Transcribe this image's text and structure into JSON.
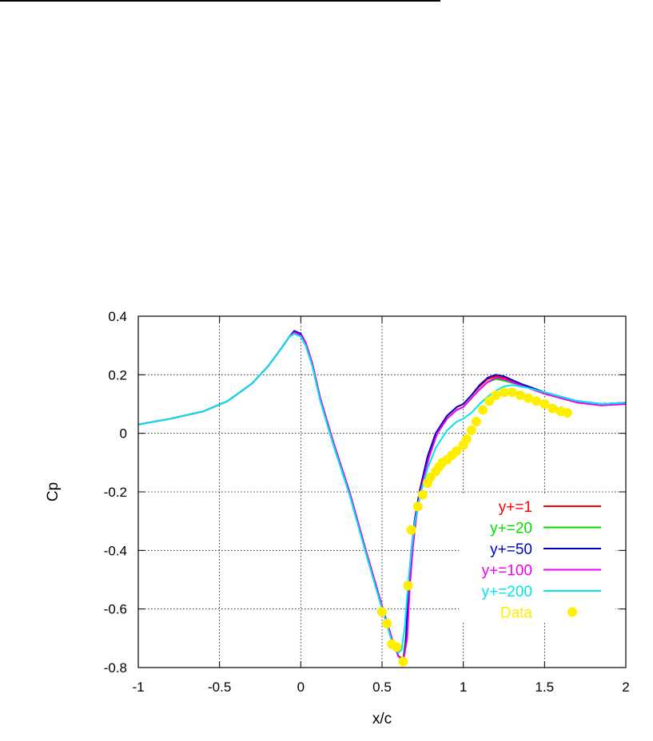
{
  "chart_data": {
    "type": "line",
    "title": "",
    "xlabel": "x/c",
    "ylabel": "Cp",
    "xlim": [
      -1,
      2
    ],
    "ylim": [
      -0.8,
      0.4
    ],
    "xticks": [
      "-1",
      "-0.5",
      "0",
      "0.5",
      "1",
      "1.5",
      "2"
    ],
    "yticks": [
      "0.4",
      "0.2",
      "0",
      "-0.2",
      "-0.4",
      "-0.6",
      "-0.8"
    ],
    "grid": true,
    "legend": "lower-right",
    "series": [
      {
        "name": "y+=1",
        "color": "#ff0000",
        "kind": "line",
        "points": [
          [
            -1,
            0.03
          ],
          [
            -0.8,
            0.05
          ],
          [
            -0.6,
            0.075
          ],
          [
            -0.45,
            0.11
          ],
          [
            -0.3,
            0.17
          ],
          [
            -0.2,
            0.23
          ],
          [
            -0.12,
            0.29
          ],
          [
            -0.07,
            0.33
          ],
          [
            -0.04,
            0.345
          ],
          [
            0,
            0.335
          ],
          [
            0.03,
            0.31
          ],
          [
            0.07,
            0.24
          ],
          [
            0.12,
            0.12
          ],
          [
            0.2,
            -0.03
          ],
          [
            0.3,
            -0.2
          ],
          [
            0.4,
            -0.4
          ],
          [
            0.5,
            -0.59
          ],
          [
            0.56,
            -0.7
          ],
          [
            0.6,
            -0.76
          ],
          [
            0.63,
            -0.78
          ],
          [
            0.65,
            -0.7
          ],
          [
            0.66,
            -0.55
          ],
          [
            0.68,
            -0.4
          ],
          [
            0.7,
            -0.3
          ],
          [
            0.73,
            -0.2
          ],
          [
            0.78,
            -0.08
          ],
          [
            0.83,
            0.0
          ],
          [
            0.9,
            0.06
          ],
          [
            0.96,
            0.09
          ],
          [
            1.0,
            0.1
          ],
          [
            1.05,
            0.13
          ],
          [
            1.1,
            0.16
          ],
          [
            1.15,
            0.185
          ],
          [
            1.2,
            0.195
          ],
          [
            1.25,
            0.19
          ],
          [
            1.35,
            0.17
          ],
          [
            1.5,
            0.14
          ],
          [
            1.7,
            0.11
          ],
          [
            1.85,
            0.1
          ],
          [
            2,
            0.105
          ]
        ]
      },
      {
        "name": "y+=20",
        "color": "#00dd00",
        "kind": "line",
        "points": [
          [
            -1,
            0.03
          ],
          [
            -0.8,
            0.05
          ],
          [
            -0.6,
            0.075
          ],
          [
            -0.45,
            0.11
          ],
          [
            -0.3,
            0.17
          ],
          [
            -0.2,
            0.23
          ],
          [
            -0.12,
            0.29
          ],
          [
            -0.07,
            0.33
          ],
          [
            -0.04,
            0.345
          ],
          [
            0,
            0.335
          ],
          [
            0.03,
            0.31
          ],
          [
            0.07,
            0.24
          ],
          [
            0.12,
            0.12
          ],
          [
            0.2,
            -0.03
          ],
          [
            0.3,
            -0.2
          ],
          [
            0.4,
            -0.4
          ],
          [
            0.5,
            -0.59
          ],
          [
            0.56,
            -0.7
          ],
          [
            0.6,
            -0.76
          ],
          [
            0.63,
            -0.77
          ],
          [
            0.65,
            -0.68
          ],
          [
            0.67,
            -0.52
          ],
          [
            0.69,
            -0.38
          ],
          [
            0.71,
            -0.28
          ],
          [
            0.74,
            -0.18
          ],
          [
            0.79,
            -0.07
          ],
          [
            0.84,
            0.0
          ],
          [
            0.9,
            0.05
          ],
          [
            0.96,
            0.08
          ],
          [
            1.0,
            0.09
          ],
          [
            1.05,
            0.12
          ],
          [
            1.1,
            0.15
          ],
          [
            1.15,
            0.175
          ],
          [
            1.2,
            0.185
          ],
          [
            1.25,
            0.18
          ],
          [
            1.35,
            0.165
          ],
          [
            1.5,
            0.14
          ],
          [
            1.7,
            0.11
          ],
          [
            1.85,
            0.1
          ],
          [
            2,
            0.105
          ]
        ]
      },
      {
        "name": "y+=50",
        "color": "#0000cc",
        "kind": "line",
        "points": [
          [
            -1,
            0.03
          ],
          [
            -0.8,
            0.05
          ],
          [
            -0.6,
            0.075
          ],
          [
            -0.45,
            0.11
          ],
          [
            -0.3,
            0.17
          ],
          [
            -0.2,
            0.23
          ],
          [
            -0.12,
            0.29
          ],
          [
            -0.07,
            0.33
          ],
          [
            -0.04,
            0.35
          ],
          [
            0,
            0.34
          ],
          [
            0.03,
            0.31
          ],
          [
            0.07,
            0.24
          ],
          [
            0.12,
            0.12
          ],
          [
            0.2,
            -0.03
          ],
          [
            0.3,
            -0.2
          ],
          [
            0.4,
            -0.4
          ],
          [
            0.5,
            -0.59
          ],
          [
            0.56,
            -0.7
          ],
          [
            0.6,
            -0.76
          ],
          [
            0.63,
            -0.78
          ],
          [
            0.645,
            -0.72
          ],
          [
            0.66,
            -0.56
          ],
          [
            0.68,
            -0.41
          ],
          [
            0.7,
            -0.3
          ],
          [
            0.73,
            -0.2
          ],
          [
            0.78,
            -0.08
          ],
          [
            0.83,
            0.0
          ],
          [
            0.9,
            0.06
          ],
          [
            0.96,
            0.09
          ],
          [
            1.0,
            0.1
          ],
          [
            1.05,
            0.13
          ],
          [
            1.1,
            0.165
          ],
          [
            1.15,
            0.19
          ],
          [
            1.2,
            0.2
          ],
          [
            1.25,
            0.195
          ],
          [
            1.35,
            0.17
          ],
          [
            1.5,
            0.14
          ],
          [
            1.7,
            0.11
          ],
          [
            1.85,
            0.1
          ],
          [
            2,
            0.105
          ]
        ]
      },
      {
        "name": "y+=100",
        "color": "#ee00ee",
        "kind": "line",
        "points": [
          [
            -1,
            0.03
          ],
          [
            -0.8,
            0.05
          ],
          [
            -0.6,
            0.075
          ],
          [
            -0.45,
            0.11
          ],
          [
            -0.3,
            0.17
          ],
          [
            -0.2,
            0.23
          ],
          [
            -0.12,
            0.29
          ],
          [
            -0.07,
            0.33
          ],
          [
            -0.04,
            0.345
          ],
          [
            0,
            0.335
          ],
          [
            0.03,
            0.31
          ],
          [
            0.07,
            0.24
          ],
          [
            0.12,
            0.12
          ],
          [
            0.2,
            -0.03
          ],
          [
            0.3,
            -0.2
          ],
          [
            0.4,
            -0.4
          ],
          [
            0.5,
            -0.59
          ],
          [
            0.56,
            -0.7
          ],
          [
            0.6,
            -0.76
          ],
          [
            0.63,
            -0.78
          ],
          [
            0.655,
            -0.7
          ],
          [
            0.67,
            -0.53
          ],
          [
            0.69,
            -0.39
          ],
          [
            0.71,
            -0.29
          ],
          [
            0.74,
            -0.19
          ],
          [
            0.79,
            -0.08
          ],
          [
            0.84,
            0.0
          ],
          [
            0.9,
            0.05
          ],
          [
            0.96,
            0.08
          ],
          [
            1.0,
            0.09
          ],
          [
            1.05,
            0.12
          ],
          [
            1.1,
            0.15
          ],
          [
            1.15,
            0.175
          ],
          [
            1.2,
            0.19
          ],
          [
            1.25,
            0.185
          ],
          [
            1.35,
            0.165
          ],
          [
            1.5,
            0.135
          ],
          [
            1.7,
            0.105
          ],
          [
            1.85,
            0.095
          ],
          [
            2,
            0.1
          ]
        ]
      },
      {
        "name": "y+=200",
        "color": "#00e5ee",
        "kind": "line",
        "points": [
          [
            -1,
            0.03
          ],
          [
            -0.8,
            0.05
          ],
          [
            -0.6,
            0.075
          ],
          [
            -0.45,
            0.11
          ],
          [
            -0.3,
            0.17
          ],
          [
            -0.2,
            0.23
          ],
          [
            -0.12,
            0.29
          ],
          [
            -0.07,
            0.33
          ],
          [
            -0.04,
            0.34
          ],
          [
            0,
            0.33
          ],
          [
            0.03,
            0.3
          ],
          [
            0.07,
            0.23
          ],
          [
            0.12,
            0.11
          ],
          [
            0.2,
            -0.04
          ],
          [
            0.3,
            -0.21
          ],
          [
            0.4,
            -0.41
          ],
          [
            0.5,
            -0.6
          ],
          [
            0.56,
            -0.71
          ],
          [
            0.6,
            -0.75
          ],
          [
            0.62,
            -0.74
          ],
          [
            0.64,
            -0.66
          ],
          [
            0.66,
            -0.52
          ],
          [
            0.68,
            -0.4
          ],
          [
            0.7,
            -0.31
          ],
          [
            0.73,
            -0.22
          ],
          [
            0.78,
            -0.12
          ],
          [
            0.83,
            -0.05
          ],
          [
            0.9,
            0.01
          ],
          [
            0.96,
            0.04
          ],
          [
            1.0,
            0.05
          ],
          [
            1.05,
            0.07
          ],
          [
            1.1,
            0.1
          ],
          [
            1.15,
            0.125
          ],
          [
            1.2,
            0.145
          ],
          [
            1.25,
            0.16
          ],
          [
            1.3,
            0.165
          ],
          [
            1.4,
            0.155
          ],
          [
            1.5,
            0.14
          ],
          [
            1.7,
            0.11
          ],
          [
            1.85,
            0.1
          ],
          [
            2,
            0.105
          ]
        ]
      },
      {
        "name": "Data",
        "color": "#ffee00",
        "kind": "scatter",
        "points": [
          [
            0.5,
            -0.61
          ],
          [
            0.53,
            -0.65
          ],
          [
            0.56,
            -0.72
          ],
          [
            0.59,
            -0.73
          ],
          [
            0.63,
            -0.78
          ],
          [
            0.66,
            -0.52
          ],
          [
            0.68,
            -0.33
          ],
          [
            0.72,
            -0.25
          ],
          [
            0.75,
            -0.21
          ],
          [
            0.78,
            -0.17
          ],
          [
            0.8,
            -0.15
          ],
          [
            0.83,
            -0.13
          ],
          [
            0.85,
            -0.115
          ],
          [
            0.87,
            -0.1
          ],
          [
            0.9,
            -0.09
          ],
          [
            0.93,
            -0.075
          ],
          [
            0.96,
            -0.06
          ],
          [
            1.0,
            -0.04
          ],
          [
            1.02,
            -0.02
          ],
          [
            1.05,
            0.01
          ],
          [
            1.08,
            0.04
          ],
          [
            1.12,
            0.08
          ],
          [
            1.16,
            0.11
          ],
          [
            1.2,
            0.13
          ],
          [
            1.25,
            0.14
          ],
          [
            1.3,
            0.14
          ],
          [
            1.35,
            0.13
          ],
          [
            1.4,
            0.12
          ],
          [
            1.45,
            0.11
          ],
          [
            1.5,
            0.1
          ],
          [
            1.55,
            0.085
          ],
          [
            1.6,
            0.075
          ],
          [
            1.64,
            0.07
          ]
        ]
      }
    ]
  }
}
